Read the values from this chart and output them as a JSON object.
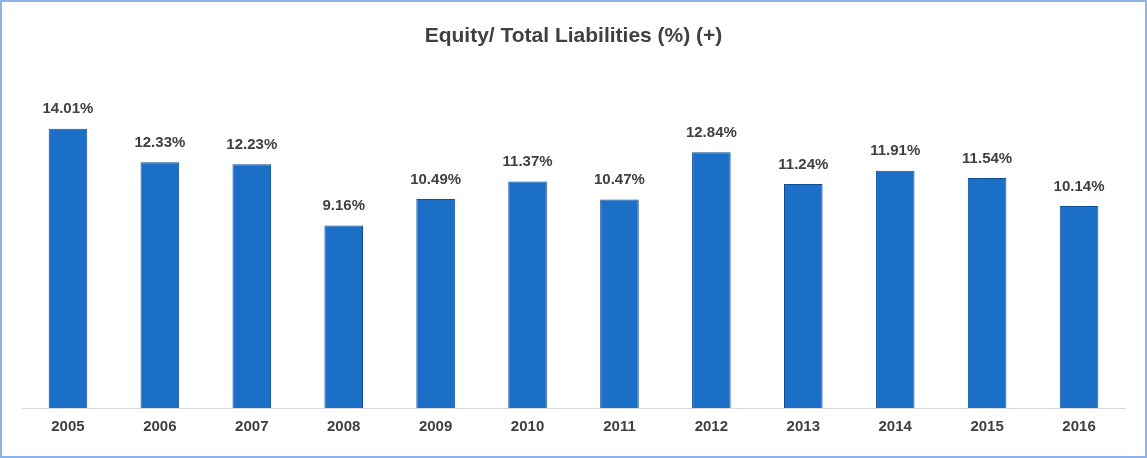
{
  "chart_data": {
    "type": "bar",
    "title": "Equity/ Total Liabilities (%) (+)",
    "categories": [
      "2005",
      "2006",
      "2007",
      "2008",
      "2009",
      "2010",
      "2011",
      "2012",
      "2013",
      "2014",
      "2015",
      "2016"
    ],
    "values": [
      14.01,
      12.33,
      12.23,
      9.16,
      10.49,
      11.37,
      10.47,
      12.84,
      11.24,
      11.91,
      11.54,
      10.14
    ],
    "value_labels": [
      "14.01%",
      "12.33%",
      "12.23%",
      "9.16%",
      "10.49%",
      "11.37%",
      "10.47%",
      "12.84%",
      "11.24%",
      "11.91%",
      "11.54%",
      "10.14%"
    ],
    "color": "#1b6fc6",
    "grid": false,
    "legend": false,
    "tick_labels": "x"
  }
}
